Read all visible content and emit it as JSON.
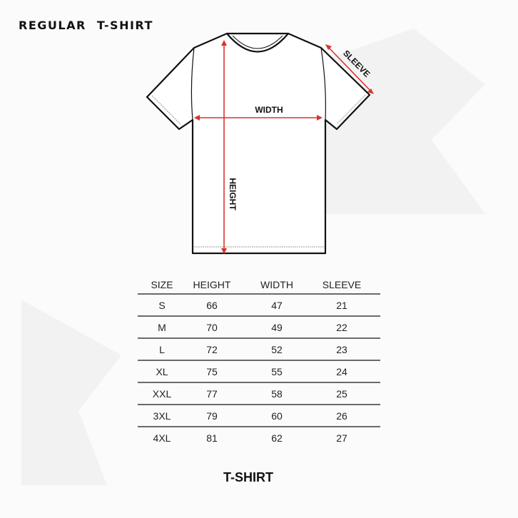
{
  "title": "REGULAR T-SHIRT",
  "diagram": {
    "labels": {
      "width": "WIDTH",
      "height": "HEIGHT",
      "sleeve": "SLEEVE"
    },
    "arrow_color": "#d9332b"
  },
  "table": {
    "headers": [
      "SIZE",
      "HEIGHT",
      "WIDTH",
      "SLEEVE"
    ],
    "rows": [
      [
        "S",
        "66",
        "47",
        "21"
      ],
      [
        "M",
        "70",
        "49",
        "22"
      ],
      [
        "L",
        "72",
        "52",
        "23"
      ],
      [
        "XL",
        "75",
        "55",
        "24"
      ],
      [
        "XXL",
        "77",
        "58",
        "25"
      ],
      [
        "3XL",
        "79",
        "60",
        "26"
      ],
      [
        "4XL",
        "81",
        "62",
        "27"
      ]
    ]
  },
  "footer": "T-SHIRT"
}
